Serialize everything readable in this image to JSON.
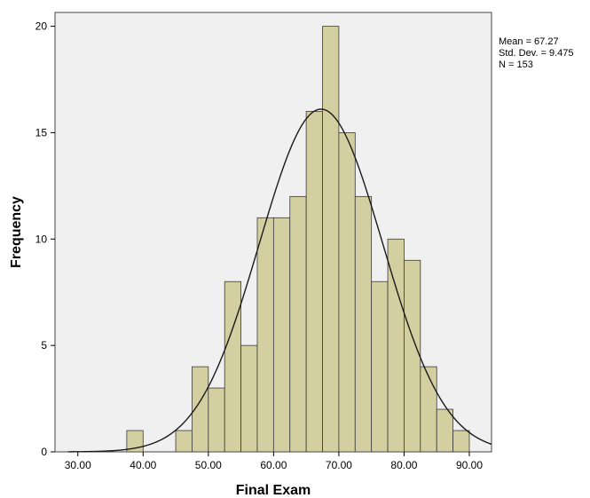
{
  "chart_data": {
    "type": "bar",
    "subtype": "histogram",
    "xlabel": "Final Exam",
    "ylabel": "Frequency",
    "xlim": [
      26.5,
      93.4
    ],
    "ylim": [
      0,
      20.65
    ],
    "bin_width": 2.5,
    "x_ticks": [
      30,
      40,
      50,
      60,
      70,
      80,
      90
    ],
    "x_tick_labels": [
      "30.00",
      "40.00",
      "50.00",
      "60.00",
      "70.00",
      "80.00",
      "90.00"
    ],
    "y_ticks": [
      0,
      5,
      10,
      15,
      20
    ],
    "y_tick_labels": [
      "0",
      "5",
      "10",
      "15",
      "20"
    ],
    "bins": [
      {
        "start": 37.5,
        "end": 40.0,
        "count": 1
      },
      {
        "start": 45.0,
        "end": 47.5,
        "count": 1
      },
      {
        "start": 47.5,
        "end": 50.0,
        "count": 4
      },
      {
        "start": 50.0,
        "end": 52.5,
        "count": 3
      },
      {
        "start": 52.5,
        "end": 55.0,
        "count": 8
      },
      {
        "start": 55.0,
        "end": 57.5,
        "count": 5
      },
      {
        "start": 57.5,
        "end": 60.0,
        "count": 11
      },
      {
        "start": 60.0,
        "end": 62.5,
        "count": 11
      },
      {
        "start": 62.5,
        "end": 65.0,
        "count": 12
      },
      {
        "start": 65.0,
        "end": 67.5,
        "count": 16
      },
      {
        "start": 67.5,
        "end": 70.0,
        "count": 20
      },
      {
        "start": 70.0,
        "end": 72.5,
        "count": 15
      },
      {
        "start": 72.5,
        "end": 75.0,
        "count": 12
      },
      {
        "start": 75.0,
        "end": 77.5,
        "count": 8
      },
      {
        "start": 77.5,
        "end": 80.0,
        "count": 10
      },
      {
        "start": 80.0,
        "end": 82.5,
        "count": 9
      },
      {
        "start": 82.5,
        "end": 85.0,
        "count": 4
      },
      {
        "start": 85.0,
        "end": 87.5,
        "count": 2
      },
      {
        "start": 87.5,
        "end": 90.0,
        "count": 1
      }
    ],
    "normal_curve": {
      "mean": 67.27,
      "sd": 9.475,
      "n": 153
    },
    "stats": {
      "mean": "Mean = 67.27",
      "sd": "Std. Dev. = 9.475",
      "n": "N = 153"
    },
    "grid": false,
    "legend": "none",
    "colors": {
      "bar_fill": "#d4cfa1",
      "bar_stroke": "#3a3a3a",
      "plot_bg": "#f0f0f0",
      "curve": "#1a1a1a"
    }
  }
}
